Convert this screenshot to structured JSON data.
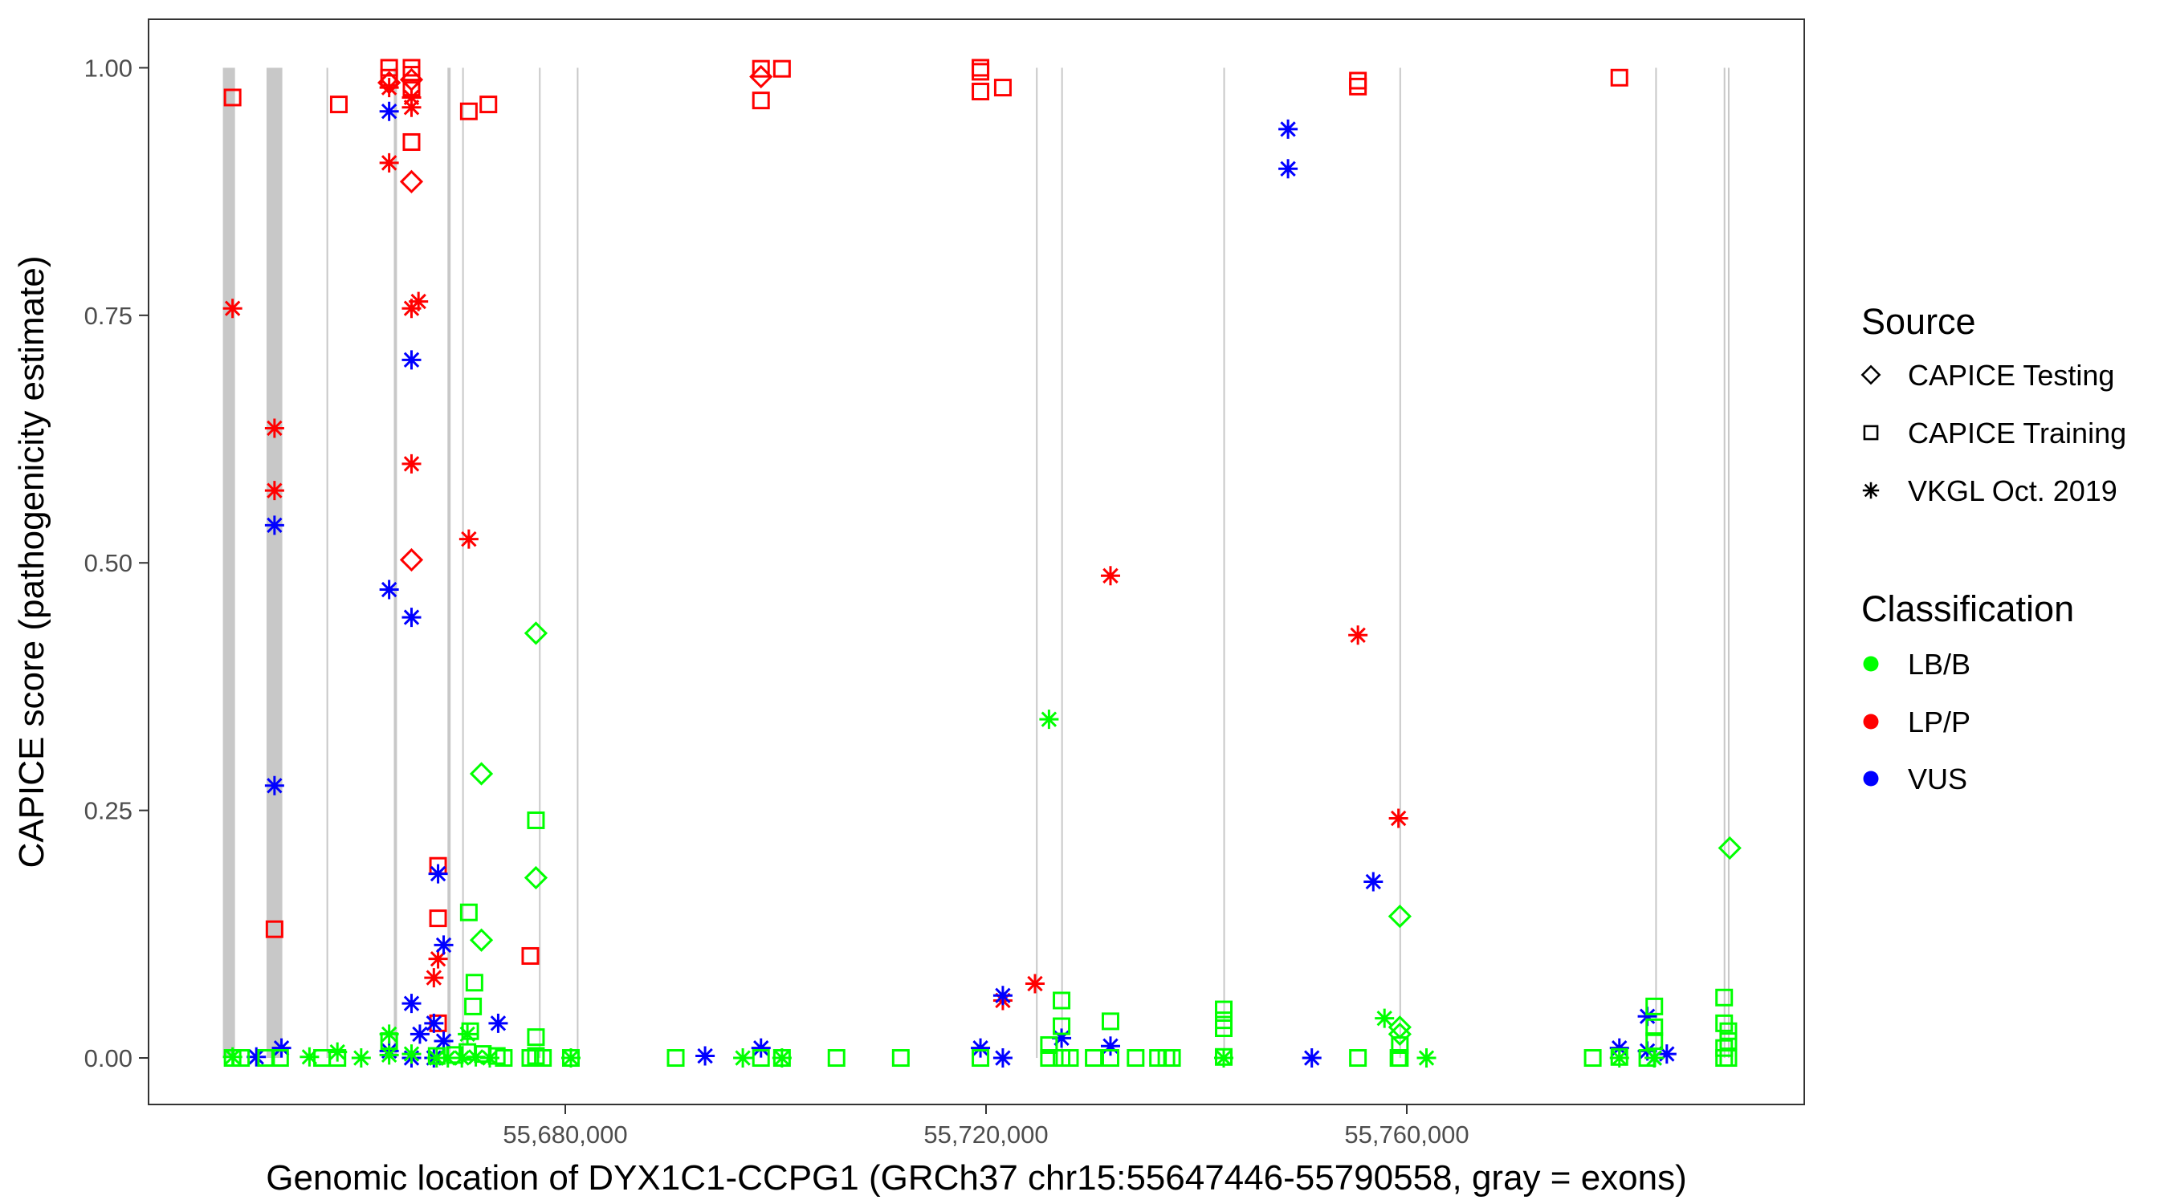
{
  "chart_data": {
    "type": "scatter",
    "title": "",
    "xlabel": "Genomic location of DYX1C1-CCPG1 (GRCh37 chr15:55647446-55790558, gray = exons)",
    "ylabel": "CAPICE score (pathogenicity estimate)",
    "xlim": [
      55640382,
      55797787
    ],
    "ylim": [
      -0.047,
      1.049
    ],
    "x_ticks": [
      55680000,
      55720000,
      55760000
    ],
    "x_tick_labels": [
      "55,680,000",
      "55,720,000",
      "55,760,000"
    ],
    "y_ticks": [
      0,
      0.25,
      0.5,
      0.75,
      1.0
    ],
    "y_tick_labels": [
      "0.00",
      "0.25",
      "0.50",
      "0.75",
      "1.00"
    ],
    "grid": false,
    "exons": [
      [
        55647450,
        55648600
      ],
      [
        55651600,
        55653100
      ],
      [
        55657300,
        55657400
      ],
      [
        55663700,
        55664000
      ],
      [
        55668800,
        55669100
      ],
      [
        55670200,
        55670300
      ],
      [
        55677500,
        55677600
      ],
      [
        55681100,
        55681200
      ],
      [
        55724750,
        55724830
      ],
      [
        55727150,
        55727220
      ],
      [
        55742560,
        55742630
      ],
      [
        55759300,
        55759380
      ],
      [
        55783620,
        55783700
      ],
      [
        55790130,
        55790200
      ],
      [
        55790530,
        55790558
      ]
    ],
    "legend": {
      "placement": "right",
      "source_title": "Source",
      "sources": [
        {
          "key": "T",
          "label": "CAPICE Testing",
          "shape": "diamond"
        },
        {
          "key": "R",
          "label": "CAPICE Training",
          "shape": "square"
        },
        {
          "key": "V",
          "label": "VKGL Oct. 2019",
          "shape": "asterisk"
        }
      ],
      "class_title": "Classification",
      "classes": [
        {
          "key": "LB",
          "label": "LB/B",
          "color": "#00FF00"
        },
        {
          "key": "LP",
          "label": "LP/P",
          "color": "#FF0000"
        },
        {
          "key": "VUS",
          "label": "VUS",
          "color": "#0000FF"
        }
      ]
    },
    "points_format": [
      "position",
      "score",
      "source",
      "classification"
    ],
    "points": [
      [
        55648370,
        0.97,
        "R",
        "LP"
      ],
      [
        55648370,
        0.757,
        "V",
        "LP"
      ],
      [
        55658470,
        0.963,
        "R",
        "LP"
      ],
      [
        55663255,
        1.0,
        "R",
        "LP"
      ],
      [
        55663255,
        0.99,
        "R",
        "LP"
      ],
      [
        55663255,
        0.985,
        "T",
        "LP"
      ],
      [
        55663255,
        0.98,
        "V",
        "LP"
      ],
      [
        55663255,
        0.904,
        "V",
        "LP"
      ],
      [
        55665381,
        1.0,
        "R",
        "LP"
      ],
      [
        55665381,
        0.993,
        "R",
        "LP"
      ],
      [
        55665381,
        0.98,
        "R",
        "LP"
      ],
      [
        55665381,
        0.988,
        "T",
        "LP"
      ],
      [
        55665381,
        0.97,
        "V",
        "LP"
      ],
      [
        55665381,
        0.96,
        "V",
        "LP"
      ],
      [
        55665381,
        0.925,
        "R",
        "LP"
      ],
      [
        55665381,
        0.885,
        "T",
        "LP"
      ],
      [
        55665381,
        0.757,
        "V",
        "LP"
      ],
      [
        55666045,
        0.764,
        "V",
        "LP"
      ],
      [
        55665381,
        0.6,
        "V",
        "LP"
      ],
      [
        55665381,
        0.503,
        "T",
        "LP"
      ],
      [
        55670830,
        0.956,
        "R",
        "LP"
      ],
      [
        55672690,
        0.963,
        "R",
        "LP"
      ],
      [
        55670830,
        0.524,
        "V",
        "LP"
      ],
      [
        55652357,
        0.636,
        "V",
        "LP"
      ],
      [
        55652357,
        0.573,
        "V",
        "LP"
      ],
      [
        55652357,
        0.13,
        "R",
        "LP"
      ],
      [
        55667906,
        0.194,
        "R",
        "LP"
      ],
      [
        55667906,
        0.141,
        "R",
        "LP"
      ],
      [
        55667906,
        0.1,
        "V",
        "LP"
      ],
      [
        55667507,
        0.081,
        "V",
        "LP"
      ],
      [
        55667906,
        0.035,
        "R",
        "LP"
      ],
      [
        55676678,
        0.103,
        "R",
        "LP"
      ],
      [
        55698606,
        0.999,
        "R",
        "LP"
      ],
      [
        55698606,
        0.991,
        "T",
        "LP"
      ],
      [
        55698606,
        0.967,
        "R",
        "LP"
      ],
      [
        55700600,
        0.999,
        "R",
        "LP"
      ],
      [
        55719471,
        1.0,
        "R",
        "LP"
      ],
      [
        55719471,
        0.996,
        "R",
        "LP"
      ],
      [
        55719471,
        0.976,
        "R",
        "LP"
      ],
      [
        55721598,
        0.98,
        "R",
        "LP"
      ],
      [
        55721598,
        0.058,
        "V",
        "LP"
      ],
      [
        55724655,
        0.075,
        "V",
        "LP"
      ],
      [
        55731831,
        0.487,
        "V",
        "LP"
      ],
      [
        55755355,
        0.987,
        "R",
        "LP"
      ],
      [
        55755355,
        0.981,
        "R",
        "LP"
      ],
      [
        55755355,
        0.427,
        "V",
        "LP"
      ],
      [
        55759210,
        0.242,
        "V",
        "LP"
      ],
      [
        55780210,
        0.99,
        "R",
        "LP"
      ],
      [
        55663255,
        0.956,
        "V",
        "VUS"
      ],
      [
        55652357,
        0.538,
        "V",
        "VUS"
      ],
      [
        55652357,
        0.275,
        "V",
        "VUS"
      ],
      [
        55663255,
        0.473,
        "V",
        "VUS"
      ],
      [
        55665381,
        0.445,
        "V",
        "VUS"
      ],
      [
        55665381,
        0.705,
        "V",
        "VUS"
      ],
      [
        55667906,
        0.186,
        "V",
        "VUS"
      ],
      [
        55668438,
        0.114,
        "V",
        "VUS"
      ],
      [
        55665381,
        0.055,
        "V",
        "VUS"
      ],
      [
        55667507,
        0.035,
        "V",
        "VUS"
      ],
      [
        55666178,
        0.024,
        "V",
        "VUS"
      ],
      [
        55668438,
        0.017,
        "V",
        "VUS"
      ],
      [
        55673621,
        0.035,
        "V",
        "VUS"
      ],
      [
        55650629,
        0.001,
        "V",
        "VUS"
      ],
      [
        55653020,
        0.01,
        "V",
        "VUS"
      ],
      [
        55663255,
        0.007,
        "V",
        "VUS"
      ],
      [
        55665381,
        0.0,
        "V",
        "VUS"
      ],
      [
        55667507,
        0.0,
        "V",
        "VUS"
      ],
      [
        55693290,
        0.002,
        "V",
        "VUS"
      ],
      [
        55698606,
        0.01,
        "V",
        "VUS"
      ],
      [
        55719471,
        0.01,
        "V",
        "VUS"
      ],
      [
        55721598,
        0.063,
        "V",
        "VUS"
      ],
      [
        55721598,
        0.0,
        "V",
        "VUS"
      ],
      [
        55727180,
        0.02,
        "V",
        "VUS"
      ],
      [
        55731831,
        0.012,
        "V",
        "VUS"
      ],
      [
        55748710,
        0.938,
        "V",
        "VUS"
      ],
      [
        55748710,
        0.898,
        "V",
        "VUS"
      ],
      [
        55750970,
        0.0,
        "V",
        "VUS"
      ],
      [
        55756817,
        0.178,
        "V",
        "VUS"
      ],
      [
        55780210,
        0.01,
        "V",
        "VUS"
      ],
      [
        55782870,
        0.042,
        "V",
        "VUS"
      ],
      [
        55782870,
        0.007,
        "V",
        "VUS"
      ],
      [
        55783530,
        0.0,
        "V",
        "VUS"
      ],
      [
        55784720,
        0.004,
        "V",
        "VUS"
      ],
      [
        55677209,
        0.429,
        "T",
        "LB"
      ],
      [
        55672026,
        0.287,
        "T",
        "LB"
      ],
      [
        55677209,
        0.24,
        "R",
        "LB"
      ],
      [
        55677209,
        0.182,
        "T",
        "LB"
      ],
      [
        55670830,
        0.147,
        "R",
        "LB"
      ],
      [
        55672026,
        0.119,
        "T",
        "LB"
      ],
      [
        55671362,
        0.076,
        "R",
        "LB"
      ],
      [
        55671229,
        0.052,
        "R",
        "LB"
      ],
      [
        55670963,
        0.027,
        "R",
        "LB"
      ],
      [
        55677209,
        0.021,
        "R",
        "LB"
      ],
      [
        55725984,
        0.342,
        "V",
        "LB"
      ],
      [
        55790706,
        0.212,
        "T",
        "LB"
      ],
      [
        55759341,
        0.143,
        "T",
        "LB"
      ],
      [
        55757880,
        0.04,
        "V",
        "LB"
      ],
      [
        55759341,
        0.031,
        "T",
        "LB"
      ],
      [
        55759341,
        0.024,
        "T",
        "LB"
      ],
      [
        55759341,
        0.013,
        "R",
        "LB"
      ],
      [
        55759341,
        0.0,
        "R",
        "LB"
      ],
      [
        55790170,
        0.061,
        "R",
        "LB"
      ],
      [
        55790170,
        0.035,
        "R",
        "LB"
      ],
      [
        55790570,
        0.027,
        "R",
        "LB"
      ],
      [
        55790570,
        0.017,
        "R",
        "LB"
      ],
      [
        55790170,
        0.01,
        "R",
        "LB"
      ],
      [
        55783530,
        0.052,
        "R",
        "LB"
      ],
      [
        55783530,
        0.031,
        "R",
        "LB"
      ],
      [
        55783530,
        0.017,
        "R",
        "LB"
      ],
      [
        55742596,
        0.049,
        "R",
        "LB"
      ],
      [
        55742596,
        0.038,
        "R",
        "LB"
      ],
      [
        55742596,
        0.03,
        "R",
        "LB"
      ],
      [
        55727180,
        0.058,
        "R",
        "LB"
      ],
      [
        55727180,
        0.032,
        "R",
        "LB"
      ],
      [
        55725984,
        0.013,
        "R",
        "LB"
      ],
      [
        55731831,
        0.037,
        "R",
        "LB"
      ],
      [
        55663255,
        0.024,
        "V",
        "LB"
      ],
      [
        55663255,
        0.017,
        "R",
        "LB"
      ],
      [
        55670697,
        0.024,
        "V",
        "LB"
      ],
      [
        55648370,
        0.0,
        "R",
        "LB"
      ],
      [
        55648370,
        0.001,
        "V",
        "LB"
      ],
      [
        55649167,
        0.0,
        "R",
        "LB"
      ],
      [
        55651559,
        0.0,
        "R",
        "LB"
      ],
      [
        55652888,
        0.0,
        "R",
        "LB"
      ],
      [
        55655679,
        0.001,
        "V",
        "LB"
      ],
      [
        55656875,
        0.0,
        "R",
        "LB"
      ],
      [
        55658337,
        0.006,
        "V",
        "LB"
      ],
      [
        55658337,
        0.0,
        "R",
        "LB"
      ],
      [
        55660597,
        0.0,
        "V",
        "LB"
      ],
      [
        55663255,
        0.003,
        "V",
        "LB"
      ],
      [
        55665381,
        0.004,
        "V",
        "LB"
      ],
      [
        55667773,
        0.0,
        "V",
        "LB"
      ],
      [
        55667773,
        0.002,
        "R",
        "LB"
      ],
      [
        55668836,
        0.0,
        "V",
        "LB"
      ],
      [
        55669501,
        0.003,
        "R",
        "LB"
      ],
      [
        55670166,
        0.0,
        "V",
        "LB"
      ],
      [
        55670697,
        0.006,
        "R",
        "LB"
      ],
      [
        55671494,
        0.001,
        "V",
        "LB"
      ],
      [
        55672159,
        0.004,
        "R",
        "LB"
      ],
      [
        55672823,
        0.0,
        "V",
        "LB"
      ],
      [
        55673488,
        0.002,
        "R",
        "LB"
      ],
      [
        55674152,
        0.0,
        "R",
        "LB"
      ],
      [
        55676678,
        0.0,
        "R",
        "LB"
      ],
      [
        55677209,
        0.002,
        "R",
        "LB"
      ],
      [
        55677874,
        0.0,
        "R",
        "LB"
      ],
      [
        55680532,
        0.0,
        "V",
        "LB"
      ],
      [
        55680532,
        0.0,
        "R",
        "LB"
      ],
      [
        55690499,
        0.0,
        "R",
        "LB"
      ],
      [
        55696878,
        0.0,
        "V",
        "LB"
      ],
      [
        55698606,
        0.0,
        "R",
        "LB"
      ],
      [
        55700600,
        0.0,
        "V",
        "LB"
      ],
      [
        55700600,
        0.0,
        "R",
        "LB"
      ],
      [
        55705783,
        0.0,
        "R",
        "LB"
      ],
      [
        55711896,
        0.0,
        "R",
        "LB"
      ],
      [
        55719471,
        0.0,
        "R",
        "LB"
      ],
      [
        55725984,
        0.0,
        "R",
        "LB"
      ],
      [
        55727180,
        0.0,
        "R",
        "LB"
      ],
      [
        55727977,
        0.0,
        "R",
        "LB"
      ],
      [
        55730236,
        0.0,
        "R",
        "LB"
      ],
      [
        55731831,
        0.0,
        "R",
        "LB"
      ],
      [
        55734223,
        0.0,
        "R",
        "LB"
      ],
      [
        55736350,
        0.0,
        "R",
        "LB"
      ],
      [
        55737147,
        0.0,
        "R",
        "LB"
      ],
      [
        55737679,
        0.0,
        "R",
        "LB"
      ],
      [
        55742596,
        0.0,
        "V",
        "LB"
      ],
      [
        55742596,
        0.001,
        "R",
        "LB"
      ],
      [
        55755355,
        0.0,
        "R",
        "LB"
      ],
      [
        55759210,
        0.0,
        "R",
        "LB"
      ],
      [
        55761870,
        0.0,
        "V",
        "LB"
      ],
      [
        55777680,
        0.0,
        "R",
        "LB"
      ],
      [
        55780210,
        0.0,
        "V",
        "LB"
      ],
      [
        55780210,
        0.001,
        "R",
        "LB"
      ],
      [
        55782870,
        0.0,
        "R",
        "LB"
      ],
      [
        55783530,
        0.0,
        "V",
        "LB"
      ],
      [
        55790170,
        0.0,
        "R",
        "LB"
      ],
      [
        55790570,
        0.0,
        "R",
        "LB"
      ]
    ]
  }
}
